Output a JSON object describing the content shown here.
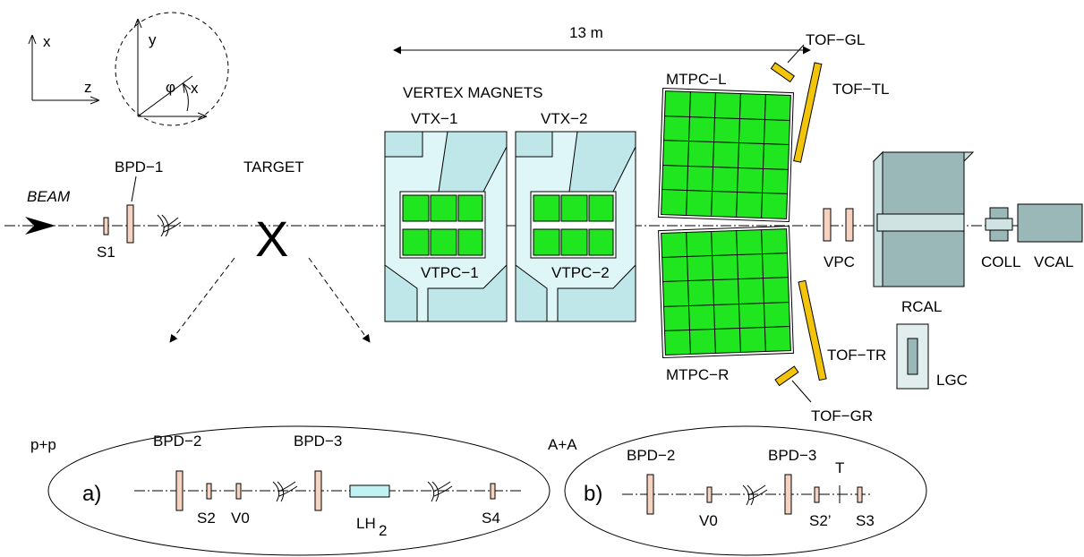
{
  "axes": {
    "x": "x",
    "y": "y",
    "z": "z",
    "phi": "φ"
  },
  "beam": {
    "label": "BEAM"
  },
  "counters": {
    "s1": "S1",
    "bpd1": "BPD−1"
  },
  "target": {
    "label": "TARGET",
    "mark": "X"
  },
  "scale": {
    "label": "13 m"
  },
  "magnets": {
    "title": "VERTEX MAGNETS",
    "vtx1": "VTX−1",
    "vtx2": "VTX−2",
    "vtpc1": "VTPC−1",
    "vtpc2": "VTPC−2"
  },
  "mtpc": {
    "left": "MTPC−L",
    "right": "MTPC−R"
  },
  "tof": {
    "gl": "TOF−GL",
    "tl": "TOF−TL",
    "tr": "TOF−TR",
    "gr": "TOF−GR"
  },
  "calorimeters": {
    "vpc": "VPC",
    "rcal": "RCAL",
    "lgc": "LGC",
    "coll": "COLL",
    "vcal": "VCAL"
  },
  "inset_a": {
    "tag": "p+p",
    "panel": "a)",
    "bpd2": "BPD−2",
    "bpd3": "BPD−3",
    "s2": "S2",
    "v0": "V0",
    "lh": "LH",
    "lh_sub": "2",
    "s4": "S4"
  },
  "inset_b": {
    "tag": "A+A",
    "panel": "b)",
    "bpd2": "BPD−2",
    "bpd3": "BPD−3",
    "t": "T",
    "v0": "V0",
    "s2p": "S2’",
    "s3": "S3"
  },
  "colors": {
    "chamber": "#1fe61f",
    "tof": "#f2c40a",
    "counter": "#f6d2c0",
    "magnet": "#dff6f8",
    "pole": "#bfe7ea",
    "calorimeter": "#9bb8b8",
    "lh2": "#bff3f3"
  }
}
